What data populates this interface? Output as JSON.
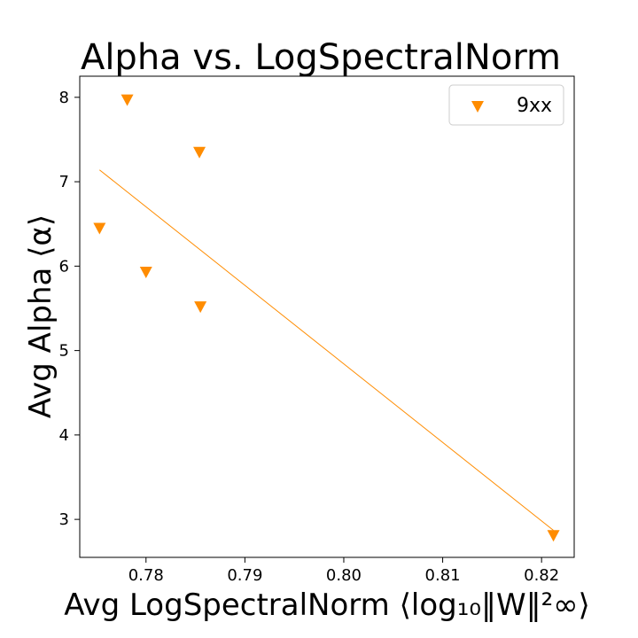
{
  "chart_data": {
    "type": "scatter",
    "title": "Alpha vs. LogSpectralNorm",
    "xlabel": "Avg LogSpectralNorm ⟨log₁₀‖W‖²∞⟩",
    "ylabel": "Avg Alpha ⟨α⟩",
    "xlim": [
      0.7733,
      0.8233
    ],
    "ylim": [
      2.55,
      8.25
    ],
    "x_ticks": [
      0.78,
      0.79,
      0.8,
      0.81,
      0.82
    ],
    "x_tick_labels": [
      "0.78",
      "0.79",
      "0.80",
      "0.81",
      "0.82"
    ],
    "y_ticks": [
      3,
      4,
      5,
      6,
      7,
      8
    ],
    "y_tick_labels": [
      "3",
      "4",
      "5",
      "6",
      "7",
      "8"
    ],
    "grid": false,
    "legend_position": "top-right",
    "series": [
      {
        "name": "9xx",
        "marker": "triangle-down",
        "color": "#ff8c00",
        "x": [
          0.7753,
          0.7781,
          0.78,
          0.7854,
          0.7855,
          0.8212
        ],
        "y": [
          6.45,
          7.97,
          5.93,
          7.35,
          5.52,
          2.81
        ]
      }
    ],
    "fit_line": {
      "color": "#ff8c00",
      "x": [
        0.7753,
        0.8212
      ],
      "y": [
        7.14,
        2.87
      ]
    }
  }
}
